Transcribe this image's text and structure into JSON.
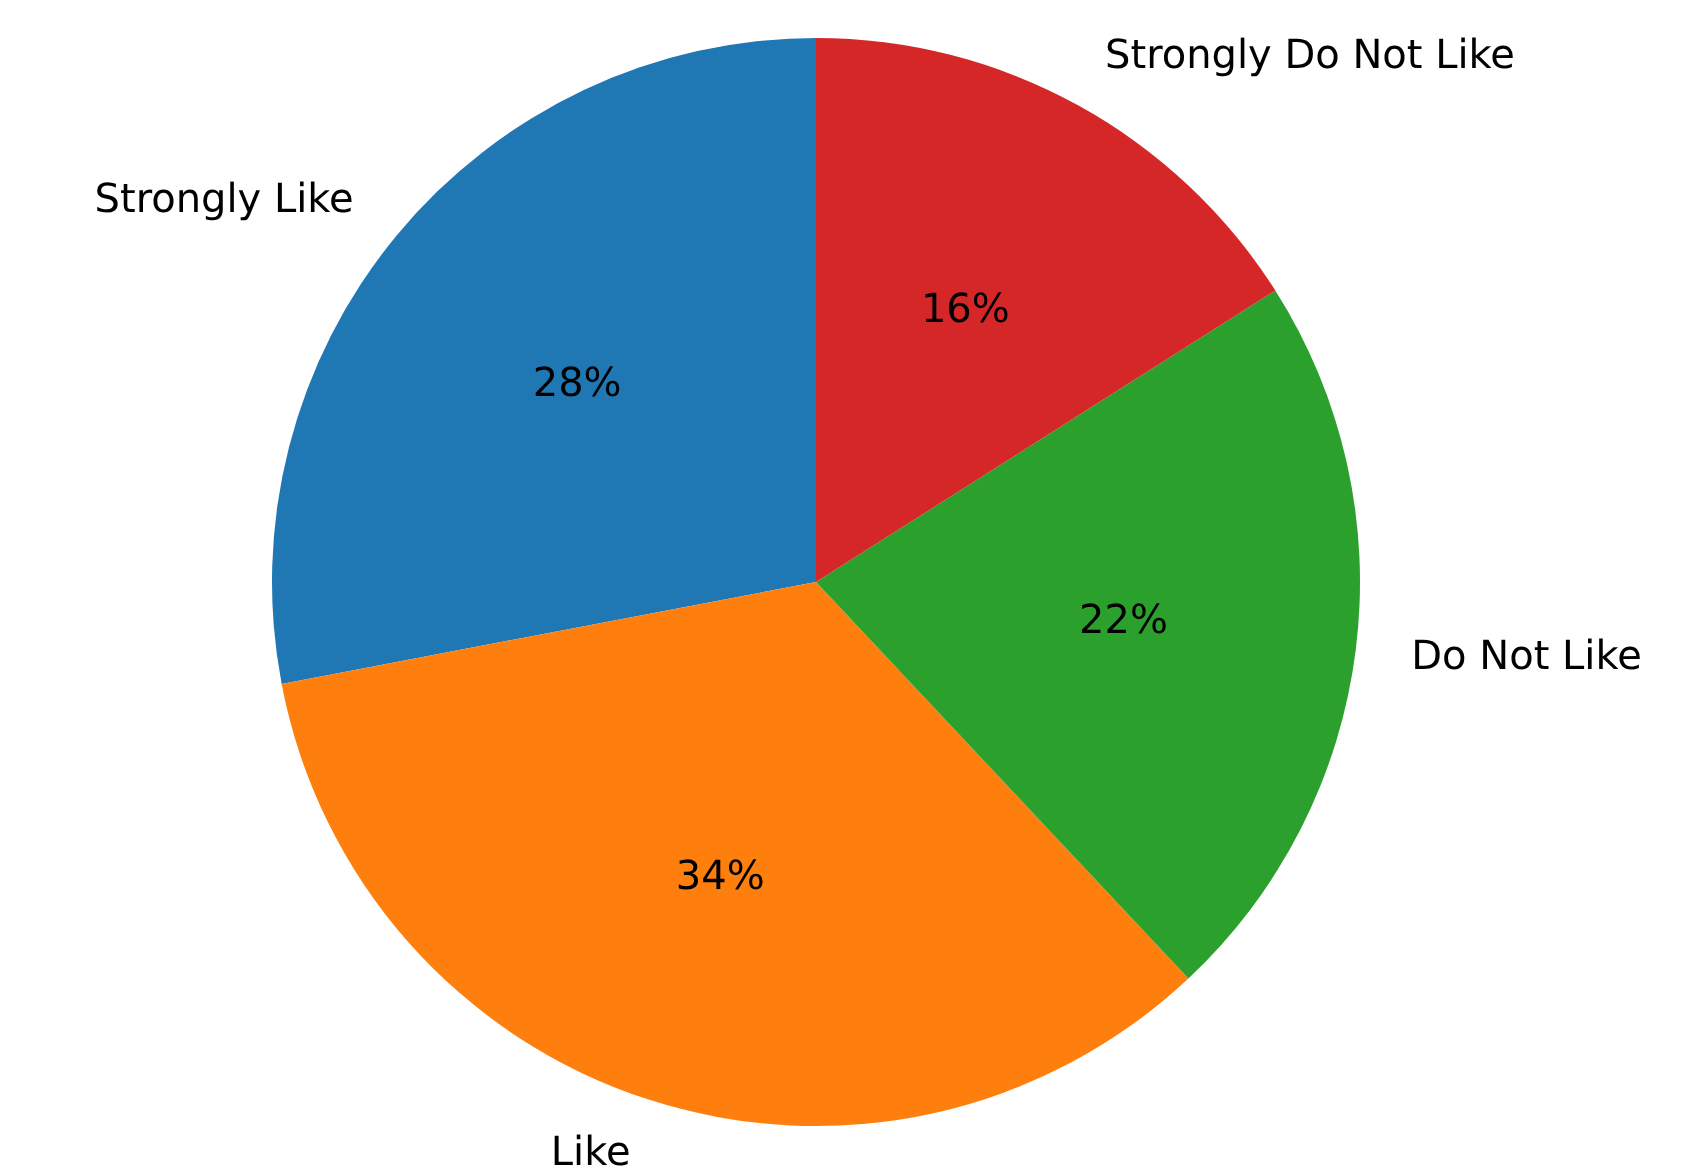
{
  "chart_data": {
    "type": "pie",
    "categories": [
      "Strongly Like",
      "Like",
      "Do Not Like",
      "Strongly Do Not Like"
    ],
    "values": [
      28,
      34,
      22,
      16
    ],
    "colors": [
      "#1f77b4",
      "#ff7f0e",
      "#2ca02c",
      "#d62728"
    ],
    "value_labels": [
      "28%",
      "34%",
      "22%",
      "16%"
    ]
  }
}
